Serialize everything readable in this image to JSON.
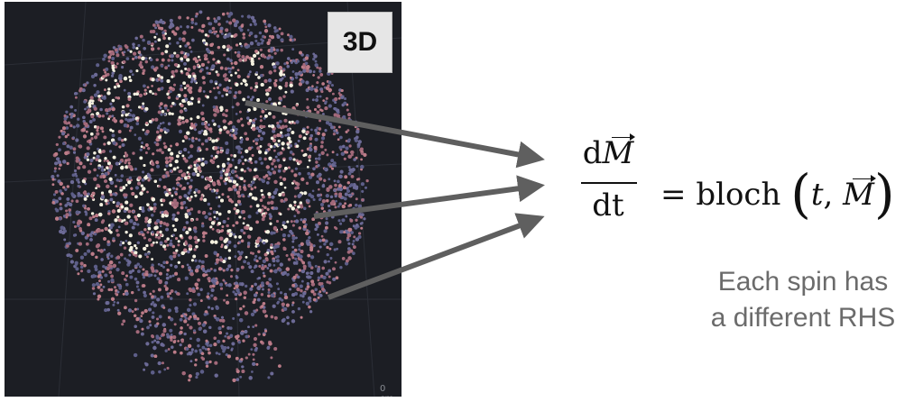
{
  "viewer": {
    "badge": "3D",
    "scale_label": "0 cm",
    "background": "#1c1e24",
    "point_colors": [
      "#5d5e88",
      "#6c6a96",
      "#a2697a",
      "#bc7c88",
      "#f4f0df"
    ]
  },
  "equation": {
    "numerator_d": "d",
    "numerator_var": "M",
    "denominator": "dt",
    "equals": "=",
    "function": "bloch",
    "arg_t": "t",
    "comma": ",",
    "arg_var": "M"
  },
  "caption": {
    "line1": "Each spin has",
    "line2": "a different RHS"
  },
  "colors": {
    "arrow": "#5f5f5f",
    "caption": "#6b6b6b"
  }
}
